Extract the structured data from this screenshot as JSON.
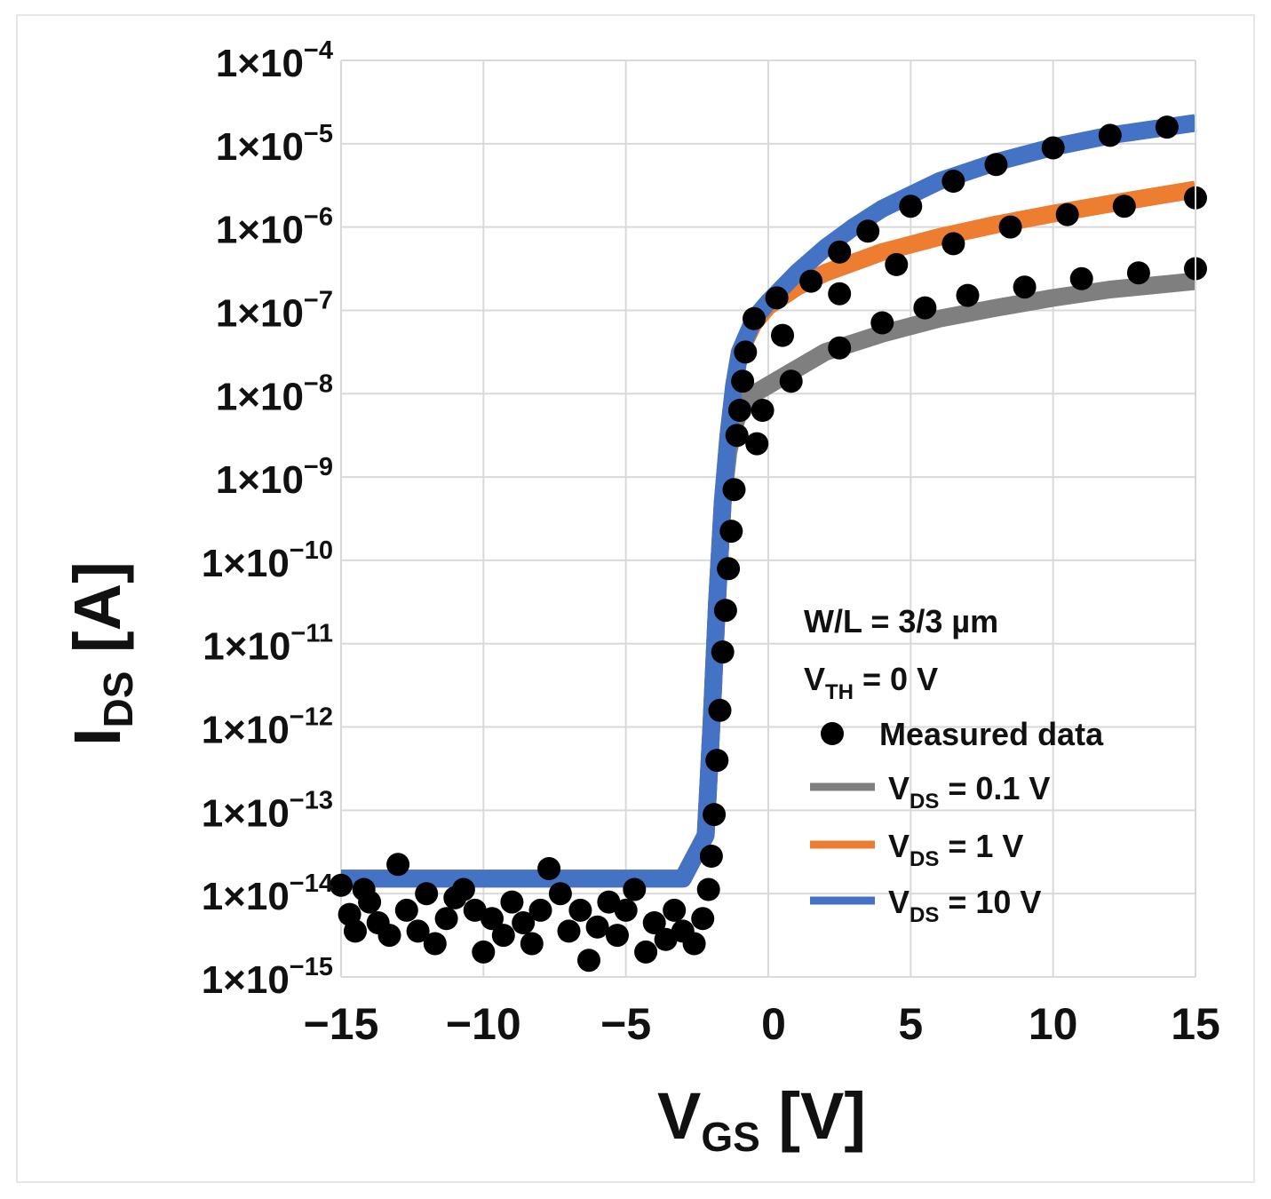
{
  "chart_data": {
    "type": "scatter",
    "title": "",
    "xlabel": {
      "main": "V",
      "sub": "GS",
      "unit": " [V]"
    },
    "ylabel": {
      "main": "I",
      "sub": "DS",
      "unit": " [A]"
    },
    "xlim": [
      -15,
      15
    ],
    "ylim_log10": [
      -15,
      -4
    ],
    "y_scale": "log",
    "grid": true,
    "x_ticks": [
      -15,
      -10,
      -5,
      0,
      5,
      10,
      15
    ],
    "x_tick_labels": [
      "−15",
      "−10",
      "−5",
      "0",
      "5",
      "10",
      "15"
    ],
    "y_tick_exponents": [
      -4,
      -5,
      -6,
      -7,
      -8,
      -9,
      -10,
      -11,
      -12,
      -13,
      -14,
      -15
    ],
    "y_tick_base": "1×10",
    "y_tick_sups": [
      "−4",
      "−5",
      "−6",
      "−7",
      "−8",
      "−9",
      "−10",
      "−11",
      "−12",
      "−13",
      "−14",
      "−15"
    ],
    "annotations": {
      "wl": "W/L = 3/3 µm",
      "vth_main": "V",
      "vth_sub": "TH",
      "vth_rest": " = 0 V"
    },
    "series": [
      {
        "name": "V_DS = 0.1 V",
        "label_main": "V",
        "label_sub": "DS",
        "label_rest": " = 0.1 V",
        "color": "#7f7f7f",
        "points": [
          [
            -15,
            -13.82
          ],
          [
            -3,
            -13.82
          ],
          [
            -2.2,
            -13.3
          ],
          [
            -2,
            -12
          ],
          [
            -1.8,
            -10.5
          ],
          [
            -1.6,
            -9.3
          ],
          [
            -1.4,
            -8.7
          ],
          [
            -1.2,
            -8.4
          ],
          [
            -1,
            -8.2
          ],
          [
            -0.5,
            -8.0
          ],
          [
            0,
            -7.9
          ],
          [
            1,
            -7.7
          ],
          [
            2,
            -7.5
          ],
          [
            4,
            -7.28
          ],
          [
            6,
            -7.1
          ],
          [
            8,
            -6.97
          ],
          [
            10,
            -6.85
          ],
          [
            12,
            -6.75
          ],
          [
            15,
            -6.65
          ]
        ]
      },
      {
        "name": "V_DS = 1 V",
        "label_main": "V",
        "label_sub": "DS",
        "label_rest": " = 1 V",
        "color": "#ed7d31",
        "points": [
          [
            -15,
            -13.82
          ],
          [
            -3,
            -13.82
          ],
          [
            -2.2,
            -13.3
          ],
          [
            -2,
            -12
          ],
          [
            -1.8,
            -10.5
          ],
          [
            -1.6,
            -9.3
          ],
          [
            -1.4,
            -8.5
          ],
          [
            -1.2,
            -7.9
          ],
          [
            -1,
            -7.5
          ],
          [
            -0.5,
            -7.15
          ],
          [
            0,
            -6.95
          ],
          [
            1,
            -6.72
          ],
          [
            2,
            -6.55
          ],
          [
            4,
            -6.3
          ],
          [
            6,
            -6.12
          ],
          [
            8,
            -5.97
          ],
          [
            10,
            -5.84
          ],
          [
            12,
            -5.72
          ],
          [
            15,
            -5.55
          ]
        ]
      },
      {
        "name": "V_DS = 10 V",
        "label_main": "V",
        "label_sub": "DS",
        "label_rest": " = 10 V",
        "color": "#4472c4",
        "points": [
          [
            -15,
            -13.82
          ],
          [
            -3,
            -13.82
          ],
          [
            -2.2,
            -13.3
          ],
          [
            -2,
            -12
          ],
          [
            -1.8,
            -10.5
          ],
          [
            -1.6,
            -9.3
          ],
          [
            -1.4,
            -8.5
          ],
          [
            -1.2,
            -7.9
          ],
          [
            -1,
            -7.5
          ],
          [
            -0.5,
            -7.1
          ],
          [
            0,
            -6.9
          ],
          [
            1,
            -6.55
          ],
          [
            2,
            -6.25
          ],
          [
            3,
            -6.0
          ],
          [
            4,
            -5.78
          ],
          [
            6,
            -5.45
          ],
          [
            8,
            -5.22
          ],
          [
            10,
            -5.04
          ],
          [
            12,
            -4.9
          ],
          [
            15,
            -4.75
          ]
        ]
      }
    ],
    "measured": {
      "name": "Measured data",
      "color": "#000000",
      "points": [
        [
          -15,
          -13.9
        ],
        [
          -14.7,
          -14.25
        ],
        [
          -14.5,
          -14.45
        ],
        [
          -14.2,
          -13.95
        ],
        [
          -14,
          -14.1
        ],
        [
          -13.7,
          -14.35
        ],
        [
          -13.3,
          -14.5
        ],
        [
          -13,
          -13.65
        ],
        [
          -12.7,
          -14.2
        ],
        [
          -12.3,
          -14.45
        ],
        [
          -12,
          -14.0
        ],
        [
          -11.7,
          -14.6
        ],
        [
          -11.3,
          -14.3
        ],
        [
          -11,
          -14.05
        ],
        [
          -10.7,
          -13.95
        ],
        [
          -10.3,
          -14.2
        ],
        [
          -10,
          -14.7
        ],
        [
          -9.7,
          -14.3
        ],
        [
          -9.3,
          -14.5
        ],
        [
          -9,
          -14.1
        ],
        [
          -8.6,
          -14.35
        ],
        [
          -8.3,
          -14.6
        ],
        [
          -8,
          -14.2
        ],
        [
          -7.7,
          -13.7
        ],
        [
          -7.3,
          -14.0
        ],
        [
          -7,
          -14.45
        ],
        [
          -6.6,
          -14.2
        ],
        [
          -6.3,
          -14.8
        ],
        [
          -6,
          -14.4
        ],
        [
          -5.6,
          -14.1
        ],
        [
          -5.3,
          -14.5
        ],
        [
          -5,
          -14.2
        ],
        [
          -4.7,
          -13.95
        ],
        [
          -4.3,
          -14.7
        ],
        [
          -4,
          -14.35
        ],
        [
          -3.6,
          -14.55
        ],
        [
          -3.3,
          -14.2
        ],
        [
          -3,
          -14.45
        ],
        [
          -2.6,
          -14.6
        ],
        [
          -2.3,
          -14.3
        ],
        [
          -2.1,
          -13.95
        ],
        [
          -2,
          -13.55
        ],
        [
          -1.9,
          -13.05
        ],
        [
          -1.8,
          -12.4
        ],
        [
          -1.7,
          -11.8
        ],
        [
          -1.6,
          -11.1
        ],
        [
          -1.5,
          -10.6
        ],
        [
          -1.4,
          -10.1
        ],
        [
          -1.3,
          -9.65
        ],
        [
          -1.2,
          -9.15
        ],
        [
          -1.1,
          -8.5
        ],
        [
          -1.0,
          -8.2
        ],
        [
          -0.9,
          -7.85
        ],
        [
          -0.8,
          -7.5
        ],
        [
          -0.5,
          -7.1
        ],
        [
          0.3,
          -6.85
        ],
        [
          1.5,
          -6.65
        ],
        [
          2.5,
          -6.3
        ],
        [
          3.5,
          -6.05
        ],
        [
          5,
          -5.75
        ],
        [
          6.5,
          -5.45
        ],
        [
          8,
          -5.25
        ],
        [
          10,
          -5.05
        ],
        [
          12,
          -4.9
        ],
        [
          14,
          -4.8
        ],
        [
          0.8,
          -7.85
        ],
        [
          2.5,
          -7.45
        ],
        [
          4,
          -7.15
        ],
        [
          5.5,
          -6.97
        ],
        [
          7,
          -6.82
        ],
        [
          9,
          -6.72
        ],
        [
          11,
          -6.62
        ],
        [
          13,
          -6.55
        ],
        [
          15,
          -6.5
        ],
        [
          -0.4,
          -8.6
        ],
        [
          -0.2,
          -8.2
        ],
        [
          0.5,
          -7.3
        ],
        [
          2.5,
          -6.8
        ],
        [
          4.5,
          -6.45
        ],
        [
          6.5,
          -6.2
        ],
        [
          8.5,
          -6.0
        ],
        [
          10.5,
          -5.85
        ],
        [
          12.5,
          -5.75
        ],
        [
          15,
          -5.65
        ]
      ]
    }
  }
}
